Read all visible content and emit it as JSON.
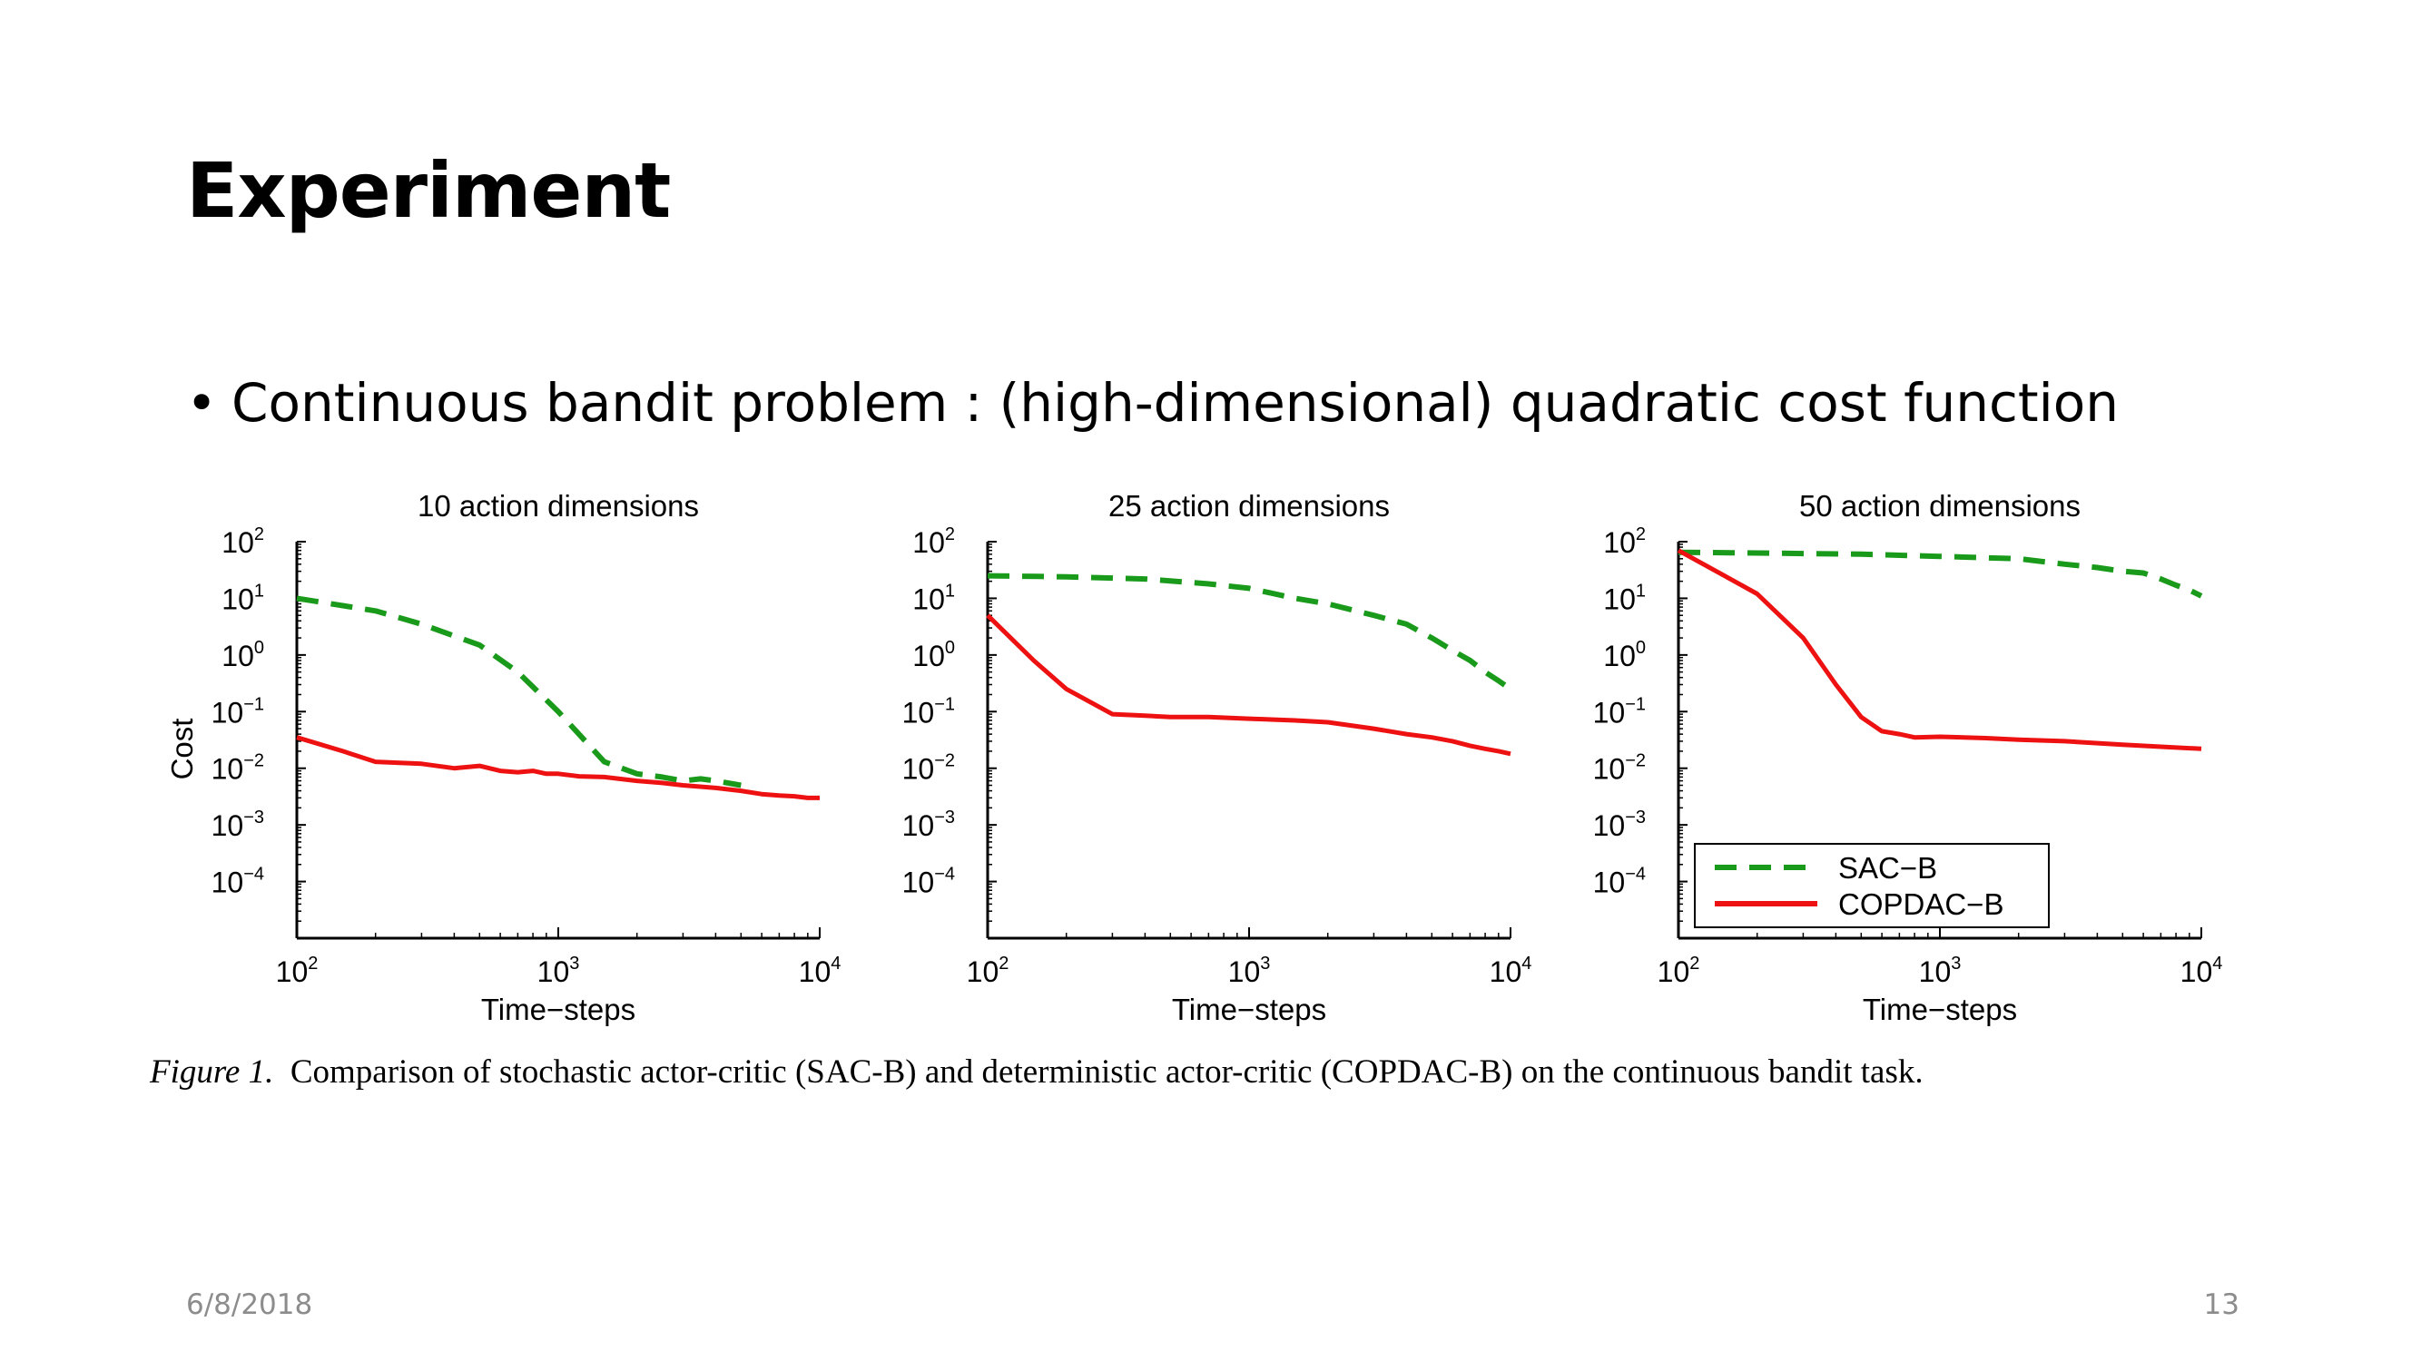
{
  "slide": {
    "title": "Experiment",
    "bullet": "Continuous bandit problem : (high-dimensional) quadratic cost function",
    "caption_label": "Figure 1.",
    "caption_text": "Comparison of stochastic actor-critic (SAC-B) and deterministic actor-critic (COPDAC-B) on the continuous bandit task.",
    "date": "6/8/2018",
    "page_number": "13"
  },
  "colors": {
    "sac": "#1a9a1a",
    "copdac": "#ee1111"
  },
  "chart_data": [
    {
      "type": "line",
      "title": "10 action dimensions",
      "xlabel": "Time−steps",
      "ylabel": "Cost",
      "xscale": "log",
      "yscale": "log",
      "xlim": [
        100,
        10000
      ],
      "ylim": [
        1e-05,
        100
      ],
      "x_tick_labels": [
        "10^2",
        "10^3",
        "10^4"
      ],
      "y_tick_labels": [
        "10^2",
        "10^1",
        "10^0",
        "10^-1",
        "10^-2",
        "10^-3",
        "10^-4"
      ],
      "series": [
        {
          "name": "SAC-B",
          "style": "dashed",
          "x": [
            100,
            200,
            300,
            500,
            700,
            1000,
            1500,
            2000,
            2500,
            3000,
            3500,
            4000,
            5000
          ],
          "y": [
            10,
            6,
            3.5,
            1.5,
            0.5,
            0.1,
            0.013,
            0.008,
            0.007,
            0.006,
            0.0065,
            0.006,
            0.005
          ]
        },
        {
          "name": "COPDAC-B",
          "style": "solid",
          "x": [
            100,
            150,
            200,
            300,
            400,
            500,
            600,
            700,
            800,
            900,
            1000,
            1200,
            1500,
            2000,
            2500,
            3000,
            4000,
            5000,
            6000,
            7000,
            8000,
            9000,
            10000
          ],
          "y": [
            0.035,
            0.02,
            0.013,
            0.012,
            0.01,
            0.011,
            0.009,
            0.0085,
            0.009,
            0.008,
            0.008,
            0.0072,
            0.007,
            0.006,
            0.0055,
            0.005,
            0.0045,
            0.004,
            0.0035,
            0.0033,
            0.0032,
            0.003,
            0.003
          ]
        }
      ]
    },
    {
      "type": "line",
      "title": "25 action dimensions",
      "xlabel": "Time−steps",
      "ylabel": "",
      "xscale": "log",
      "yscale": "log",
      "xlim": [
        100,
        10000
      ],
      "ylim": [
        1e-05,
        100
      ],
      "x_tick_labels": [
        "10^2",
        "10^3",
        "10^4"
      ],
      "y_tick_labels": [
        "10^2",
        "10^1",
        "10^0",
        "10^-1",
        "10^-2",
        "10^-3",
        "10^-4"
      ],
      "series": [
        {
          "name": "SAC-B",
          "style": "dashed",
          "x": [
            100,
            200,
            400,
            700,
            1000,
            1500,
            2000,
            3000,
            4000,
            5000,
            6000,
            7000,
            8000,
            9000,
            10000
          ],
          "y": [
            25,
            24,
            22,
            18,
            15,
            10,
            8,
            5,
            3.5,
            2,
            1.2,
            0.8,
            0.5,
            0.35,
            0.25
          ]
        },
        {
          "name": "COPDAC-B",
          "style": "solid",
          "x": [
            100,
            150,
            200,
            300,
            400,
            500,
            700,
            1000,
            1500,
            2000,
            3000,
            4000,
            5000,
            6000,
            7000,
            8000,
            9000,
            10000
          ],
          "y": [
            5,
            0.8,
            0.25,
            0.09,
            0.085,
            0.08,
            0.08,
            0.075,
            0.07,
            0.065,
            0.05,
            0.04,
            0.035,
            0.03,
            0.025,
            0.022,
            0.02,
            0.018
          ]
        }
      ]
    },
    {
      "type": "line",
      "title": "50 action dimensions",
      "xlabel": "Time−steps",
      "ylabel": "",
      "xscale": "log",
      "yscale": "log",
      "xlim": [
        100,
        10000
      ],
      "ylim": [
        1e-05,
        100
      ],
      "x_tick_labels": [
        "10^2",
        "10^3",
        "10^4"
      ],
      "y_tick_labels": [
        "10^2",
        "10^1",
        "10^0",
        "10^-1",
        "10^-2",
        "10^-3",
        "10^-4"
      ],
      "legend": {
        "placement": "bottom-right",
        "entries": [
          "SAC−B",
          "COPDAC−B"
        ]
      },
      "series": [
        {
          "name": "SAC-B",
          "style": "dashed",
          "x": [
            100,
            200,
            500,
            1000,
            2000,
            3000,
            4000,
            5000,
            6000,
            7000,
            8000,
            9000,
            10000
          ],
          "y": [
            65,
            63,
            60,
            55,
            50,
            40,
            35,
            30,
            28,
            22,
            17,
            14,
            11
          ]
        },
        {
          "name": "COPDAC-B",
          "style": "solid",
          "x": [
            100,
            150,
            200,
            300,
            400,
            500,
            600,
            700,
            800,
            1000,
            1500,
            2000,
            3000,
            5000,
            7000,
            10000
          ],
          "y": [
            70,
            25,
            12,
            2,
            0.3,
            0.08,
            0.045,
            0.04,
            0.035,
            0.036,
            0.034,
            0.032,
            0.03,
            0.026,
            0.024,
            0.022
          ]
        }
      ]
    }
  ]
}
